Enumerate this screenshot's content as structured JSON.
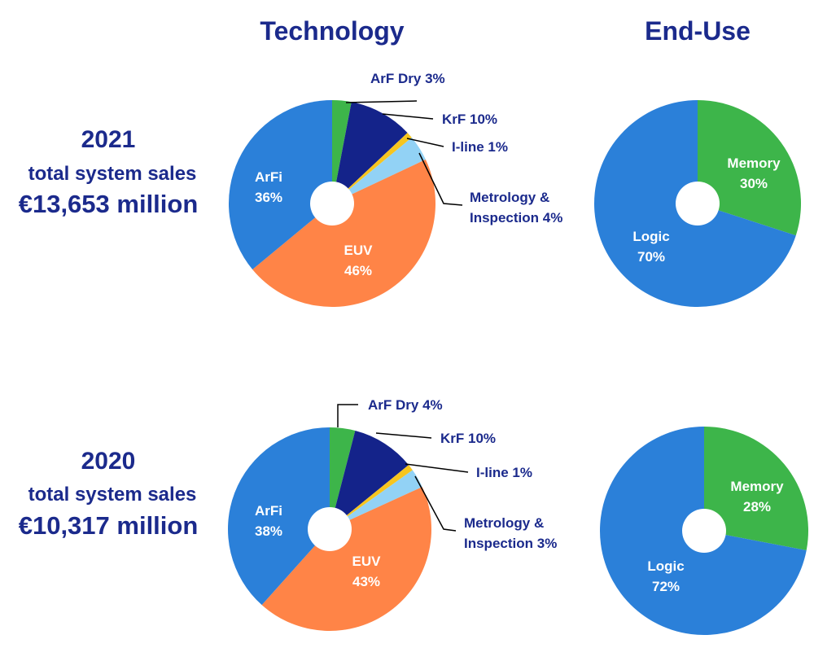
{
  "column_titles": [
    "Technology",
    "End-Use"
  ],
  "rows": [
    {
      "year": "2021",
      "subtitle": "total system sales",
      "total": "€13,653 million"
    },
    {
      "year": "2020",
      "subtitle": "total system sales",
      "total": "€10,317 million"
    }
  ],
  "chart_data": [
    {
      "type": "pie",
      "categories": [
        "ArF Dry",
        "KrF",
        "I-line",
        "Metrology & Inspection",
        "EUV",
        "ArFi"
      ],
      "values": [
        3,
        10,
        1,
        4,
        46,
        36
      ],
      "value_labels": [
        "3%",
        "10%",
        "1%",
        "4%",
        "46%",
        "36%"
      ],
      "colors": [
        "#3db54a",
        "#14238a",
        "#f7c51e",
        "#92d2f5",
        "#ff8447",
        "#2b80d9"
      ]
    },
    {
      "type": "pie",
      "categories": [
        "Memory",
        "Logic"
      ],
      "values": [
        30,
        70
      ],
      "value_labels": [
        "30%",
        "70%"
      ],
      "colors": [
        "#3db54a",
        "#2b80d9"
      ]
    },
    {
      "type": "pie",
      "categories": [
        "ArF Dry",
        "KrF",
        "I-line",
        "Metrology & Inspection",
        "EUV",
        "ArFi"
      ],
      "values": [
        4,
        10,
        1,
        3,
        43,
        38
      ],
      "value_labels": [
        "4%",
        "10%",
        "1%",
        "3%",
        "43%",
        "38%"
      ],
      "colors": [
        "#3db54a",
        "#14238a",
        "#f7c51e",
        "#92d2f5",
        "#ff8447",
        "#2b80d9"
      ]
    },
    {
      "type": "pie",
      "categories": [
        "Memory",
        "Logic"
      ],
      "values": [
        28,
        72
      ],
      "value_labels": [
        "28%",
        "72%"
      ],
      "colors": [
        "#3db54a",
        "#2b80d9"
      ]
    }
  ]
}
